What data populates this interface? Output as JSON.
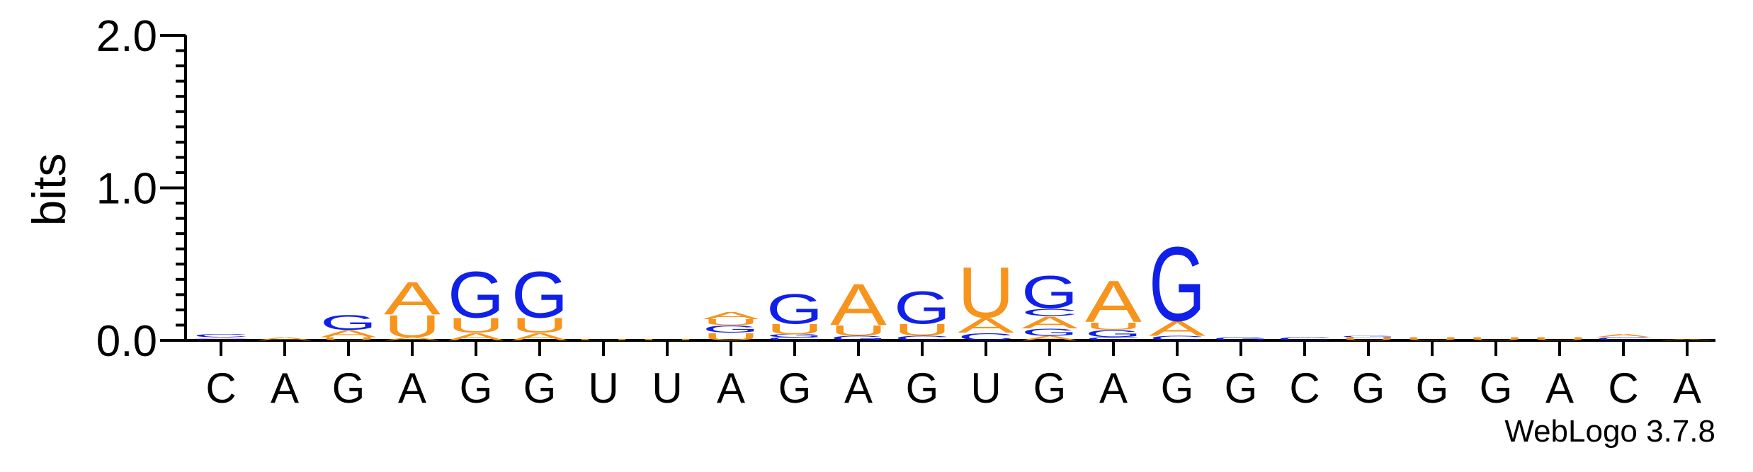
{
  "chart_data": {
    "type": "logo",
    "ylabel": "bits",
    "footer": "WebLogo 3.7.8",
    "ylim": [
      0,
      2
    ],
    "yticks": [
      {
        "value": 0,
        "label": "0.0"
      },
      {
        "value": 1,
        "label": "1.0"
      },
      {
        "value": 2,
        "label": "2.0"
      }
    ],
    "yminorticks": [
      0.1,
      0.2,
      0.3,
      0.4,
      0.5,
      0.6,
      0.7,
      0.8,
      0.9,
      1.1,
      1.2,
      1.3,
      1.4,
      1.5,
      1.6,
      1.7,
      1.8,
      1.9
    ],
    "colors": {
      "A": "#f7941d",
      "U": "#f7941d",
      "G": "#1020e8",
      "C": "#1020e8"
    },
    "categories": [
      "C",
      "A",
      "G",
      "A",
      "G",
      "G",
      "U",
      "U",
      "A",
      "G",
      "A",
      "G",
      "U",
      "G",
      "A",
      "G",
      "G",
      "C",
      "G",
      "G",
      "G",
      "A",
      "C",
      "A"
    ],
    "stacks": [
      [
        {
          "letter": "G",
          "height": 0.01
        },
        {
          "letter": "A",
          "height": 0.01
        },
        {
          "letter": "C",
          "height": 0.02
        }
      ],
      [
        {
          "letter": "A",
          "height": 0.02
        }
      ],
      [
        {
          "letter": "U",
          "height": 0.02
        },
        {
          "letter": "A",
          "height": 0.05
        },
        {
          "letter": "G",
          "height": 0.1
        }
      ],
      [
        {
          "letter": "A",
          "height": 0.02
        },
        {
          "letter": "U",
          "height": 0.15
        },
        {
          "letter": "A",
          "height": 0.22
        }
      ],
      [
        {
          "letter": "A",
          "height": 0.05
        },
        {
          "letter": "U",
          "height": 0.1
        },
        {
          "letter": "G",
          "height": 0.31
        }
      ],
      [
        {
          "letter": "A",
          "height": 0.05
        },
        {
          "letter": "U",
          "height": 0.1
        },
        {
          "letter": "G",
          "height": 0.31
        }
      ],
      [
        {
          "letter": "U",
          "height": 0.01
        }
      ],
      [
        {
          "letter": "U",
          "height": 0.01
        }
      ],
      [
        {
          "letter": "U",
          "height": 0.05
        },
        {
          "letter": "G",
          "height": 0.05
        },
        {
          "letter": "U",
          "height": 0.04
        },
        {
          "letter": "A",
          "height": 0.05
        }
      ],
      [
        {
          "letter": "C",
          "height": 0.02
        },
        {
          "letter": "G",
          "height": 0.02
        },
        {
          "letter": "U",
          "height": 0.07
        },
        {
          "letter": "G",
          "height": 0.2
        }
      ],
      [
        {
          "letter": "G",
          "height": 0.03
        },
        {
          "letter": "U",
          "height": 0.07
        },
        {
          "letter": "A",
          "height": 0.28
        }
      ],
      [
        {
          "letter": "C",
          "height": 0.03
        },
        {
          "letter": "U",
          "height": 0.08
        },
        {
          "letter": "G",
          "height": 0.22
        }
      ],
      [
        {
          "letter": "C",
          "height": 0.05
        },
        {
          "letter": "A",
          "height": 0.1
        },
        {
          "letter": "U",
          "height": 0.34
        }
      ],
      [
        {
          "letter": "A",
          "height": 0.03
        },
        {
          "letter": "G",
          "height": 0.05
        },
        {
          "letter": "A",
          "height": 0.08
        },
        {
          "letter": "C",
          "height": 0.05
        },
        {
          "letter": "G",
          "height": 0.22
        }
      ],
      [
        {
          "letter": "C",
          "height": 0.02
        },
        {
          "letter": "G",
          "height": 0.05
        },
        {
          "letter": "U",
          "height": 0.05
        },
        {
          "letter": "A",
          "height": 0.28
        }
      ],
      [
        {
          "letter": "C",
          "height": 0.03
        },
        {
          "letter": "A",
          "height": 0.1
        },
        {
          "letter": "G",
          "height": 0.5
        }
      ],
      [
        {
          "letter": "G",
          "height": 0.02
        }
      ],
      [
        {
          "letter": "C",
          "height": 0.02
        }
      ],
      [
        {
          "letter": "U",
          "height": 0.02
        },
        {
          "letter": "G",
          "height": 0.01
        }
      ],
      [
        {
          "letter": "U",
          "height": 0.02
        }
      ],
      [
        {
          "letter": "U",
          "height": 0.02
        }
      ],
      [
        {
          "letter": "U",
          "height": 0.02
        }
      ],
      [
        {
          "letter": "C",
          "height": 0.02
        },
        {
          "letter": "A",
          "height": 0.02
        }
      ],
      [
        {
          "letter": "A",
          "height": 0.01
        }
      ]
    ]
  }
}
